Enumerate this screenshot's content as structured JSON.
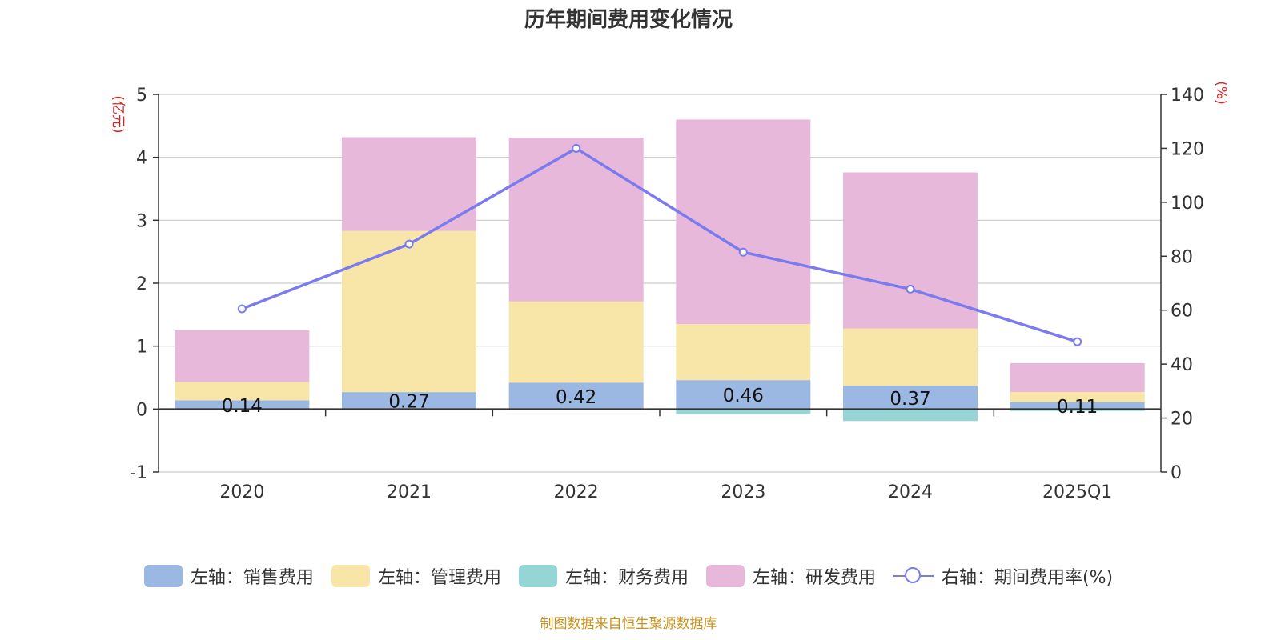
{
  "title": "历年期间费用变化情况",
  "source": "制图数据来自恒生聚源数据库",
  "colors": {
    "sales": "#9bb8e3",
    "admin": "#f7e6a8",
    "finance": "#96d5d5",
    "rnd": "#e7b8da",
    "rate": "#7b7bf0",
    "axis_unit": "#e02020"
  },
  "legend": [
    {
      "key": "sales",
      "label": "左轴：销售费用"
    },
    {
      "key": "admin",
      "label": "左轴：管理费用"
    },
    {
      "key": "finance",
      "label": "左轴：财务费用"
    },
    {
      "key": "rnd",
      "label": "左轴：研发费用"
    },
    {
      "key": "rate",
      "label": "右轴：期间费用率(%)"
    }
  ],
  "chart_data": {
    "type": "bar",
    "stacked": true,
    "title": "历年期间费用变化情况",
    "categories": [
      "2020",
      "2021",
      "2022",
      "2023",
      "2024",
      "2025Q1"
    ],
    "left_axis": {
      "unit_label": "(亿元)",
      "min": -1,
      "max": 5,
      "ticks": [
        -1,
        0,
        1,
        2,
        3,
        4,
        5
      ]
    },
    "right_axis": {
      "unit_label": "(%)",
      "min": 0,
      "max": 140,
      "ticks": [
        0,
        20,
        40,
        60,
        80,
        100,
        120,
        140
      ]
    },
    "grid": true,
    "legend_position": "bottom",
    "series": [
      {
        "key": "sales",
        "name": "左轴：销售费用",
        "axis": "left",
        "type": "bar",
        "values": [
          0.14,
          0.27,
          0.42,
          0.46,
          0.37,
          0.11
        ],
        "data_labels": [
          "0.14",
          "0.27",
          "0.42",
          "0.46",
          "0.37",
          "0.11"
        ]
      },
      {
        "key": "admin",
        "name": "左轴：管理费用",
        "axis": "left",
        "type": "bar",
        "values": [
          0.29,
          2.56,
          1.29,
          0.89,
          0.91,
          0.16
        ]
      },
      {
        "key": "finance",
        "name": "左轴：财务费用",
        "axis": "left",
        "type": "bar",
        "values": [
          0.0,
          0.0,
          -0.01,
          -0.08,
          -0.19,
          -0.03
        ]
      },
      {
        "key": "rnd",
        "name": "左轴：研发费用",
        "axis": "left",
        "type": "bar",
        "values": [
          0.82,
          1.49,
          2.6,
          3.25,
          2.48,
          0.46
        ]
      },
      {
        "key": "rate",
        "name": "右轴：期间费用率(%)",
        "axis": "right",
        "type": "line",
        "values": [
          60.5,
          84.5,
          120.0,
          81.5,
          67.8,
          48.3
        ]
      }
    ]
  }
}
